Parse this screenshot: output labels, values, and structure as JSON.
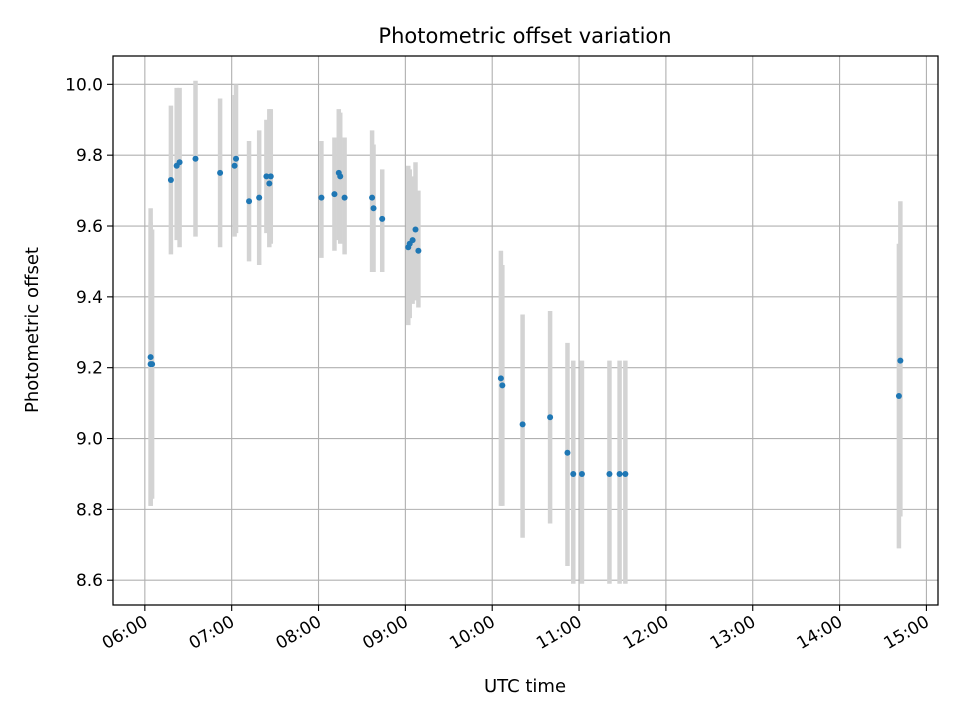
{
  "chart_data": {
    "type": "scatter",
    "title": "Photometric offset variation",
    "xlabel": "UTC time",
    "ylabel": "Photometric offset",
    "x_tick_labels": [
      "06:00",
      "07:00",
      "08:00",
      "09:00",
      "10:00",
      "11:00",
      "12:00",
      "13:00",
      "14:00",
      "15:00"
    ],
    "y_tick_labels": [
      "8.6",
      "8.8",
      "9.0",
      "9.2",
      "9.4",
      "9.6",
      "9.8",
      "10.0"
    ],
    "y_ticks": [
      8.6,
      8.8,
      9.0,
      9.2,
      9.4,
      9.6,
      9.8,
      10.0
    ],
    "xlim": [
      "05:38",
      "15:08"
    ],
    "ylim": [
      8.53,
      10.08
    ],
    "grid": true,
    "colors": {
      "point": "#1f77b4",
      "error_bar": "#d3d3d3",
      "grid": "#b0b0b0"
    },
    "points": [
      {
        "x": "06:04",
        "y": 9.23,
        "lo": 8.81,
        "hi": 9.65
      },
      {
        "x": "06:04",
        "y": 9.21,
        "lo": 8.81,
        "hi": 9.61
      },
      {
        "x": "06:05",
        "y": 9.21,
        "lo": 8.83,
        "hi": 9.59
      },
      {
        "x": "06:18",
        "y": 9.73,
        "lo": 9.52,
        "hi": 9.94
      },
      {
        "x": "06:22",
        "y": 9.77,
        "lo": 9.56,
        "hi": 9.99
      },
      {
        "x": "06:24",
        "y": 9.78,
        "lo": 9.54,
        "hi": 9.99
      },
      {
        "x": "06:35",
        "y": 9.79,
        "lo": 9.57,
        "hi": 10.01
      },
      {
        "x": "06:52",
        "y": 9.75,
        "lo": 9.54,
        "hi": 9.96
      },
      {
        "x": "07:02",
        "y": 9.77,
        "lo": 9.57,
        "hi": 9.97
      },
      {
        "x": "07:03",
        "y": 9.79,
        "lo": 9.58,
        "hi": 10.0
      },
      {
        "x": "07:12",
        "y": 9.67,
        "lo": 9.5,
        "hi": 9.84
      },
      {
        "x": "07:19",
        "y": 9.68,
        "lo": 9.49,
        "hi": 9.87
      },
      {
        "x": "07:24",
        "y": 9.74,
        "lo": 9.58,
        "hi": 9.9
      },
      {
        "x": "07:26",
        "y": 9.72,
        "lo": 9.54,
        "hi": 9.93
      },
      {
        "x": "07:27",
        "y": 9.74,
        "lo": 9.55,
        "hi": 9.93
      },
      {
        "x": "08:02",
        "y": 9.68,
        "lo": 9.51,
        "hi": 9.84
      },
      {
        "x": "08:11",
        "y": 9.69,
        "lo": 9.53,
        "hi": 9.85
      },
      {
        "x": "08:14",
        "y": 9.75,
        "lo": 9.56,
        "hi": 9.93
      },
      {
        "x": "08:15",
        "y": 9.74,
        "lo": 9.55,
        "hi": 9.92
      },
      {
        "x": "08:18",
        "y": 9.68,
        "lo": 9.52,
        "hi": 9.85
      },
      {
        "x": "08:37",
        "y": 9.68,
        "lo": 9.47,
        "hi": 9.87
      },
      {
        "x": "08:38",
        "y": 9.65,
        "lo": 9.47,
        "hi": 9.83
      },
      {
        "x": "08:44",
        "y": 9.62,
        "lo": 9.47,
        "hi": 9.76
      },
      {
        "x": "09:02",
        "y": 9.54,
        "lo": 9.32,
        "hi": 9.77
      },
      {
        "x": "09:03",
        "y": 9.55,
        "lo": 9.34,
        "hi": 9.76
      },
      {
        "x": "09:05",
        "y": 9.56,
        "lo": 9.38,
        "hi": 9.74
      },
      {
        "x": "09:07",
        "y": 9.59,
        "lo": 9.39,
        "hi": 9.78
      },
      {
        "x": "09:09",
        "y": 9.53,
        "lo": 9.37,
        "hi": 9.7
      },
      {
        "x": "10:06",
        "y": 9.17,
        "lo": 8.81,
        "hi": 9.53
      },
      {
        "x": "10:07",
        "y": 9.15,
        "lo": 8.81,
        "hi": 9.49
      },
      {
        "x": "10:21",
        "y": 9.04,
        "lo": 8.72,
        "hi": 9.35
      },
      {
        "x": "10:40",
        "y": 9.06,
        "lo": 8.76,
        "hi": 9.36
      },
      {
        "x": "10:52",
        "y": 8.96,
        "lo": 8.64,
        "hi": 9.27
      },
      {
        "x": "10:56",
        "y": 8.9,
        "lo": 8.59,
        "hi": 9.22
      },
      {
        "x": "11:02",
        "y": 8.9,
        "lo": 8.59,
        "hi": 9.22
      },
      {
        "x": "11:21",
        "y": 8.9,
        "lo": 8.59,
        "hi": 9.22
      },
      {
        "x": "11:28",
        "y": 8.9,
        "lo": 8.59,
        "hi": 9.22
      },
      {
        "x": "11:32",
        "y": 8.9,
        "lo": 8.59,
        "hi": 9.22
      },
      {
        "x": "14:41",
        "y": 9.12,
        "lo": 8.69,
        "hi": 9.55
      },
      {
        "x": "14:42",
        "y": 9.22,
        "lo": 8.78,
        "hi": 9.67
      }
    ]
  }
}
